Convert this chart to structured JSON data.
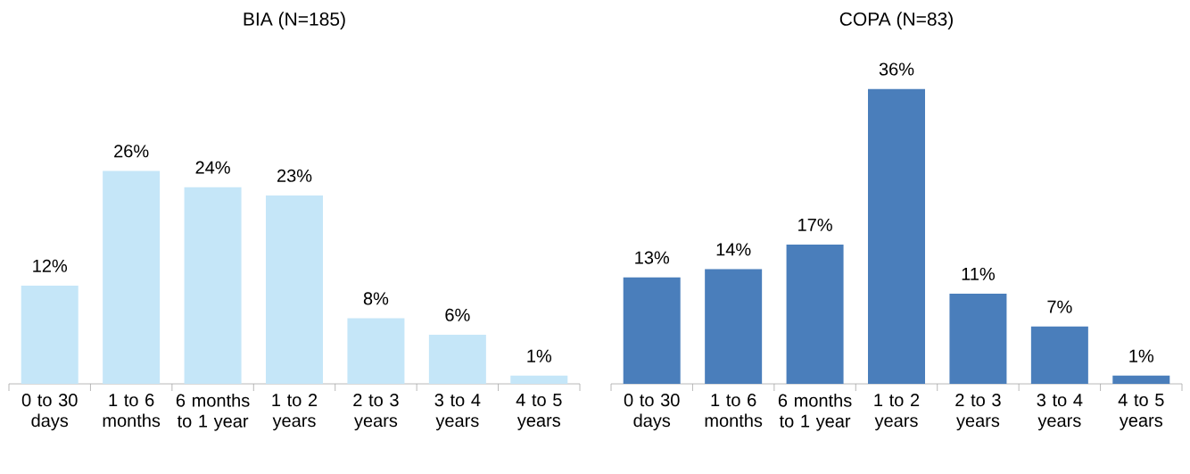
{
  "chart_data": [
    {
      "type": "bar",
      "title": "BIA (N=185)",
      "categories": [
        "0 to 30 days",
        "1 to 6 months",
        "6 months to 1 year",
        "1 to 2 years",
        "2 to 3 years",
        "3 to 4 years",
        "4 to 5 years"
      ],
      "values": [
        12,
        26,
        24,
        23,
        8,
        6,
        1
      ],
      "value_labels": [
        "12%",
        "26%",
        "24%",
        "23%",
        "8%",
        "6%",
        "1%"
      ],
      "color": "#c5e6f8"
    },
    {
      "type": "bar",
      "title": "COPA (N=83)",
      "categories": [
        "0 to 30 days",
        "1 to 6 months",
        "6 months to 1 year",
        "1 to 2 years",
        "2 to 3 years",
        "3 to 4 years",
        "4 to 5 years"
      ],
      "values": [
        13,
        14,
        17,
        36,
        11,
        7,
        1
      ],
      "value_labels": [
        "13%",
        "14%",
        "17%",
        "36%",
        "11%",
        "7%",
        "1%"
      ],
      "color": "#4a7ebb"
    }
  ]
}
